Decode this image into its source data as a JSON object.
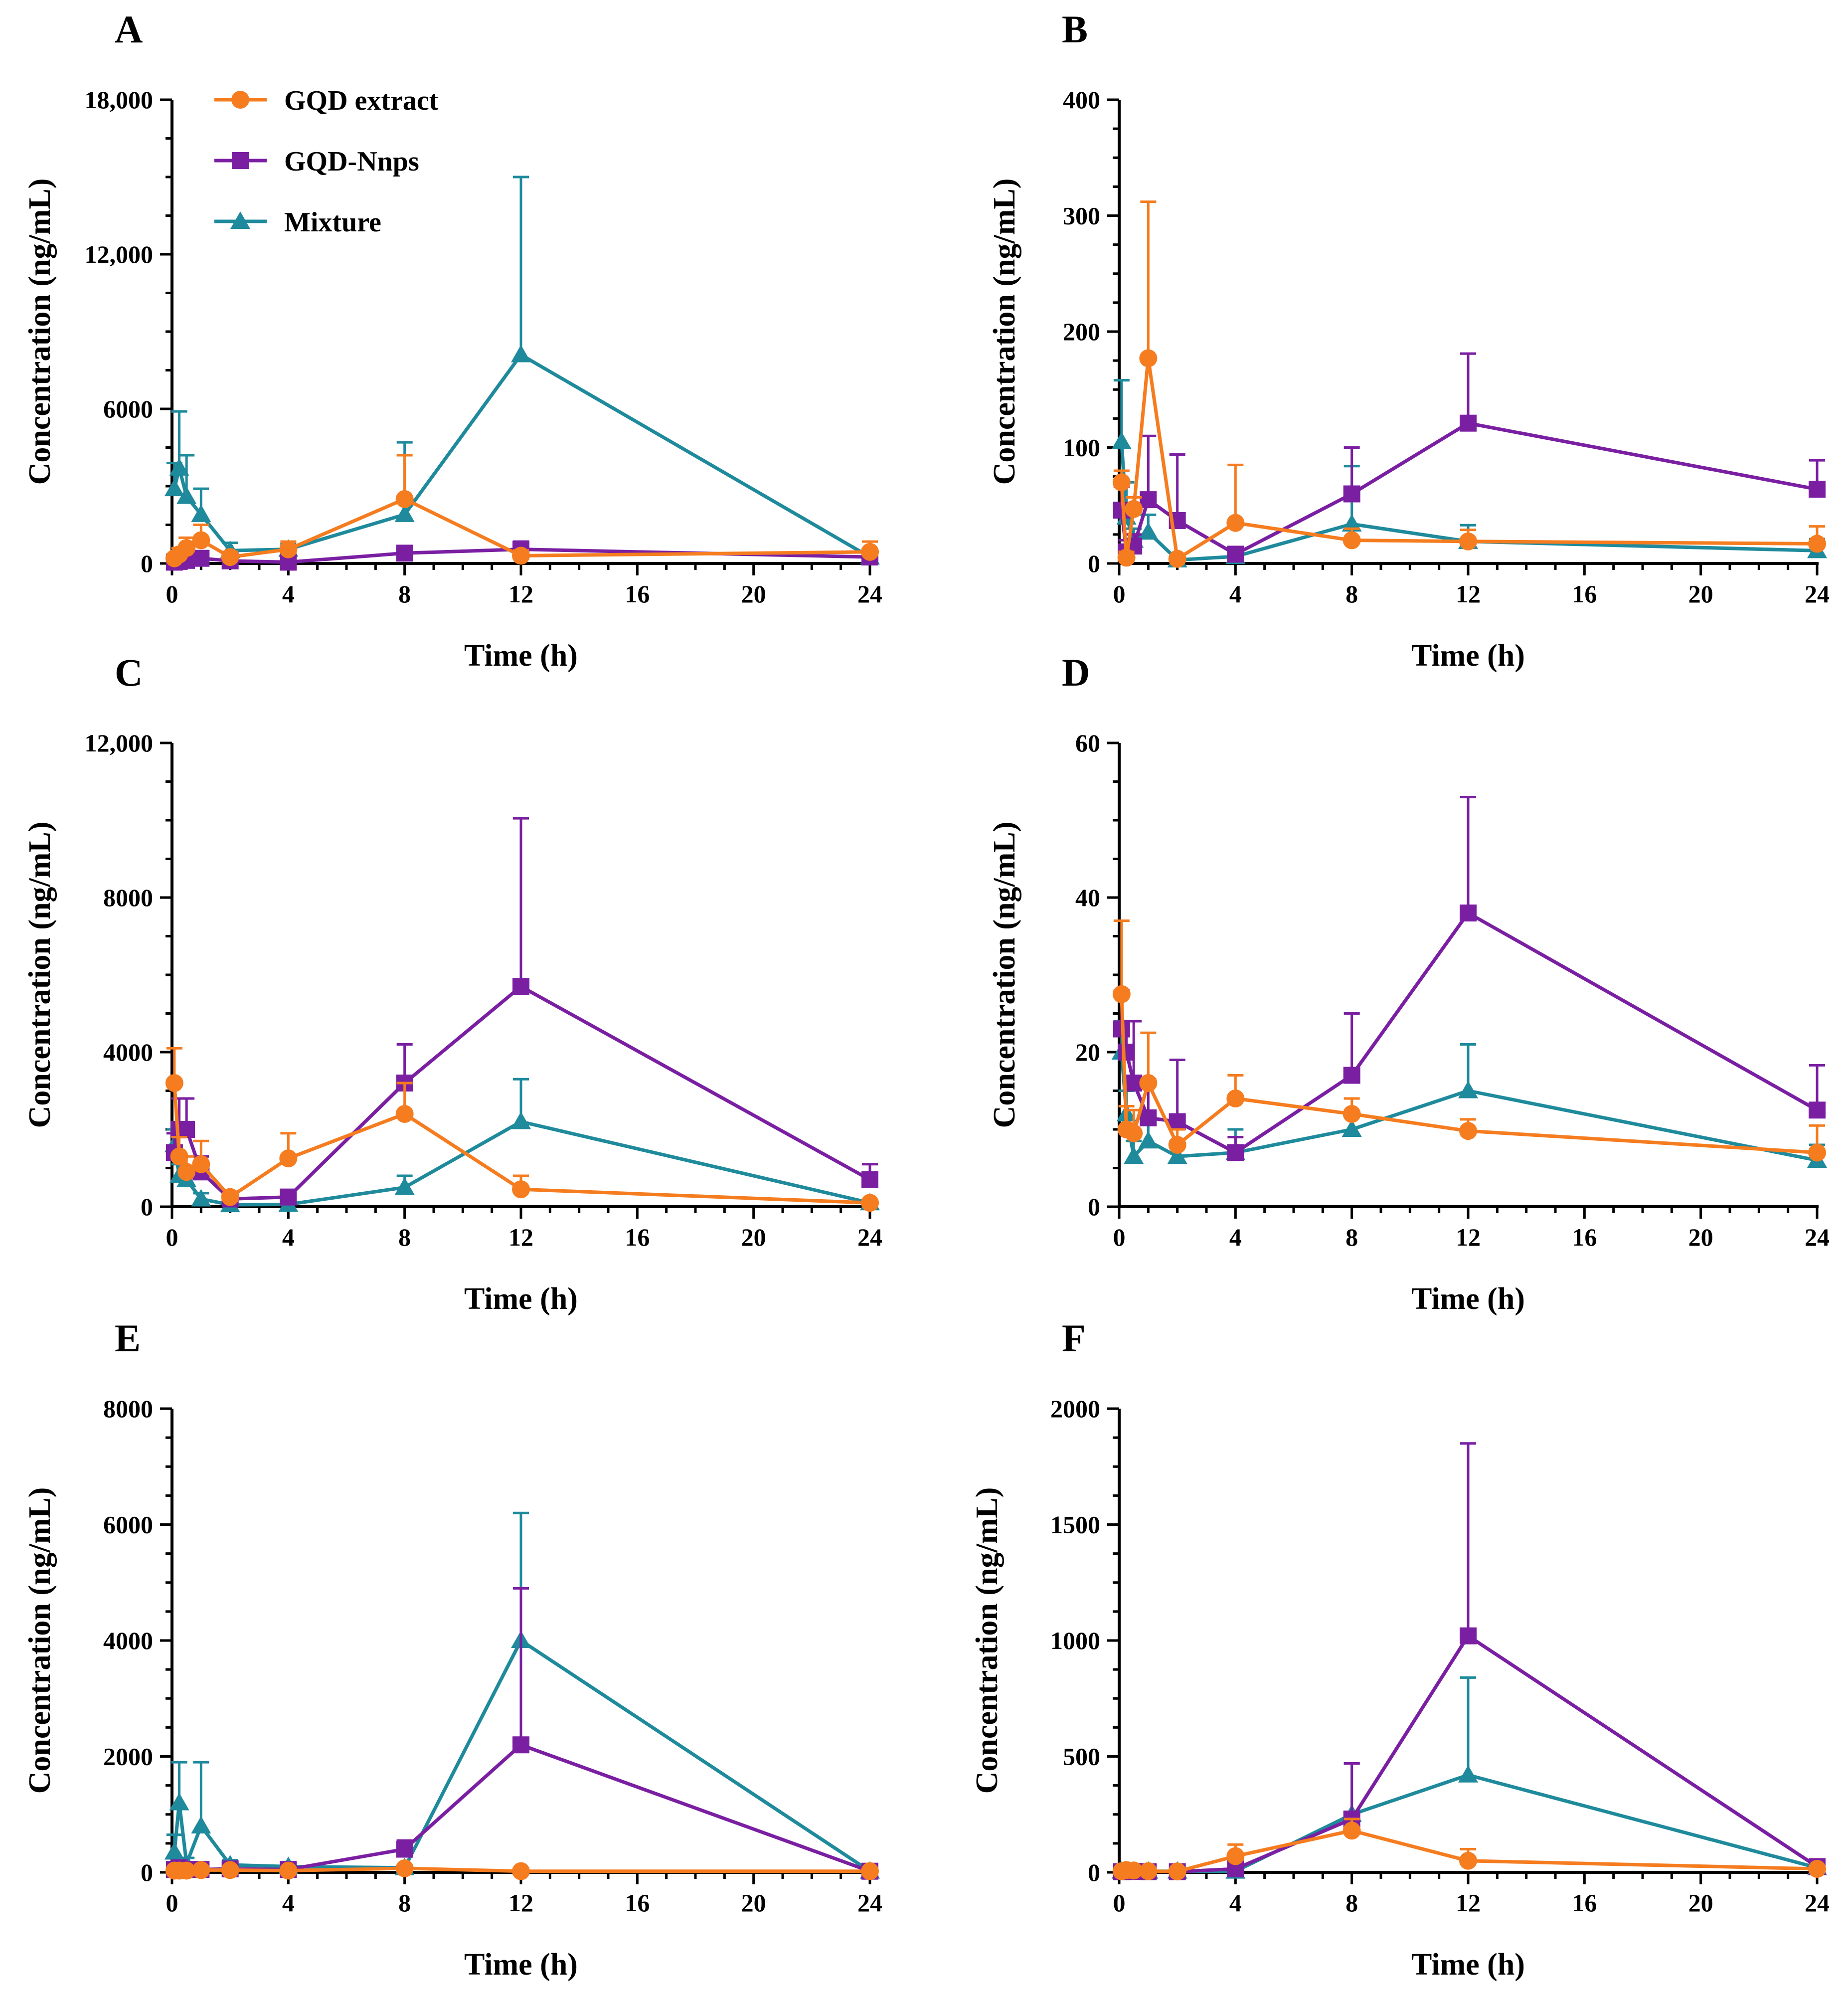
{
  "colors": {
    "gqd_extract": "#f57c1f",
    "gqd_nnps": "#7a1fa2",
    "mixture": "#1e8a9c",
    "axis": "#000000"
  },
  "legend": [
    {
      "name": "GQD extract",
      "marker": "circle"
    },
    {
      "name": "GQD-Nnps",
      "marker": "square"
    },
    {
      "name": "Mixture",
      "marker": "triangle"
    }
  ],
  "chart_data": [
    {
      "panel": "A",
      "type": "line",
      "xlabel": "Time (h)",
      "ylabel": "Concentration (ng/mL)",
      "xlim": [
        0,
        24
      ],
      "ylim": [
        0,
        18000
      ],
      "xticks": [
        0,
        4,
        8,
        12,
        16,
        20,
        24
      ],
      "yticks": [
        0,
        6000,
        12000,
        18000
      ],
      "ytick_labels": [
        "0",
        "6000",
        "12,000",
        "18,000"
      ],
      "x": [
        0.083,
        0.25,
        0.5,
        1,
        2,
        4,
        8,
        12,
        24
      ],
      "series": [
        {
          "name": "GQD extract",
          "values": [
            200,
            350,
            600,
            900,
            250,
            550,
            2500,
            300,
            450
          ],
          "errors": [
            150,
            250,
            400,
            600,
            200,
            300,
            1700,
            200,
            400
          ]
        },
        {
          "name": "GQD-Nnps",
          "values": [
            50,
            80,
            120,
            200,
            100,
            50,
            400,
            550,
            250
          ],
          "errors": [
            40,
            60,
            100,
            200,
            80,
            50,
            200,
            300,
            200
          ]
        },
        {
          "name": "Mixture",
          "values": [
            2900,
            3700,
            2600,
            1900,
            500,
            550,
            1900,
            8100,
            250
          ],
          "errors": [
            1000,
            2200,
            1600,
            1000,
            300,
            200,
            2800,
            6900,
            200
          ]
        }
      ]
    },
    {
      "panel": "B",
      "type": "line",
      "xlabel": "Time (h)",
      "ylabel": "Concentration (ng/mL)",
      "xlim": [
        0,
        24
      ],
      "ylim": [
        0,
        400
      ],
      "xticks": [
        0,
        4,
        8,
        12,
        16,
        20,
        24
      ],
      "yticks": [
        0,
        100,
        200,
        300,
        400
      ],
      "ytick_labels": [
        "0",
        "100",
        "200",
        "300",
        "400"
      ],
      "x": [
        0.083,
        0.25,
        0.5,
        1,
        2,
        4,
        8,
        12,
        24
      ],
      "series": [
        {
          "name": "GQD extract",
          "values": [
            70,
            5,
            47,
            177,
            4,
            35,
            20,
            19,
            17
          ],
          "errors": [
            10,
            5,
            10,
            135,
            3,
            50,
            10,
            10,
            15
          ]
        },
        {
          "name": "GQD-Nnps",
          "values": [
            46,
            10,
            15,
            55,
            37,
            8,
            60,
            121,
            64
          ],
          "errors": [
            20,
            10,
            10,
            55,
            57,
            5,
            40,
            60,
            25
          ]
        },
        {
          "name": "Mixture",
          "values": [
            105,
            40,
            20,
            27,
            3,
            6,
            34,
            19,
            11
          ],
          "errors": [
            53,
            30,
            10,
            15,
            3,
            5,
            50,
            14,
            10
          ]
        }
      ]
    },
    {
      "panel": "C",
      "type": "line",
      "xlabel": "Time (h)",
      "ylabel": "Concentration (ng/mL)",
      "xlim": [
        0,
        24
      ],
      "ylim": [
        0,
        12000
      ],
      "xticks": [
        0,
        4,
        8,
        12,
        16,
        20,
        24
      ],
      "yticks": [
        0,
        4000,
        8000,
        12000
      ],
      "ytick_labels": [
        "0",
        "4000",
        "8000",
        "12,000"
      ],
      "x": [
        0.083,
        0.25,
        0.5,
        1,
        2,
        4,
        8,
        12,
        24
      ],
      "series": [
        {
          "name": "GQD extract",
          "values": [
            3200,
            1300,
            900,
            1100,
            250,
            1250,
            2400,
            450,
            100
          ],
          "errors": [
            900,
            500,
            400,
            600,
            100,
            650,
            800,
            350,
            50
          ]
        },
        {
          "name": "GQD-Nnps",
          "values": [
            1400,
            2000,
            2000,
            900,
            200,
            250,
            3200,
            5700,
            700
          ],
          "errors": [
            500,
            800,
            800,
            400,
            100,
            150,
            1000,
            4350,
            400
          ]
        },
        {
          "name": "Mixture",
          "values": [
            1600,
            800,
            700,
            200,
            50,
            60,
            500,
            2200,
            100
          ],
          "errors": [
            400,
            300,
            300,
            150,
            50,
            40,
            300,
            1100,
            50
          ]
        }
      ]
    },
    {
      "panel": "D",
      "type": "line",
      "xlabel": "Time (h)",
      "ylabel": "Concentration (ng/mL)",
      "xlim": [
        0,
        24
      ],
      "ylim": [
        0,
        60
      ],
      "xticks": [
        0,
        4,
        8,
        12,
        16,
        20,
        24
      ],
      "yticks": [
        0,
        20,
        40,
        60
      ],
      "ytick_labels": [
        "0",
        "20",
        "40",
        "60"
      ],
      "x": [
        0.083,
        0.25,
        0.5,
        1,
        2,
        4,
        8,
        12,
        24
      ],
      "series": [
        {
          "name": "GQD extract",
          "values": [
            27.5,
            10,
            9.5,
            16,
            8,
            14,
            12,
            9.8,
            7
          ],
          "errors": [
            9.5,
            3,
            3,
            6.5,
            2,
            3,
            2,
            1.5,
            3.5
          ]
        },
        {
          "name": "GQD-Nnps",
          "values": [
            23,
            20,
            16,
            11.5,
            11,
            7,
            17,
            38,
            12.5
          ],
          "errors": [
            5,
            4,
            8,
            5,
            8,
            2,
            8,
            15,
            5.8
          ]
        },
        {
          "name": "Mixture",
          "values": [
            20,
            12,
            6.5,
            8.5,
            6.5,
            7,
            10,
            15,
            6
          ],
          "errors": [
            4,
            3,
            2,
            3,
            2,
            3,
            2,
            6,
            2
          ]
        }
      ]
    },
    {
      "panel": "E",
      "type": "line",
      "xlabel": "Time (h)",
      "ylabel": "Concentration (ng/mL)",
      "xlim": [
        0,
        24
      ],
      "ylim": [
        0,
        8000
      ],
      "xticks": [
        0,
        4,
        8,
        12,
        16,
        20,
        24
      ],
      "yticks": [
        0,
        2000,
        4000,
        6000,
        8000
      ],
      "ytick_labels": [
        "0",
        "2000",
        "4000",
        "6000",
        "8000"
      ],
      "x": [
        0.083,
        0.25,
        0.5,
        1,
        2,
        4,
        8,
        12,
        24
      ],
      "series": [
        {
          "name": "GQD extract",
          "values": [
            30,
            30,
            30,
            40,
            40,
            30,
            70,
            20,
            20
          ],
          "errors": [
            20,
            20,
            20,
            20,
            20,
            20,
            40,
            10,
            10
          ]
        },
        {
          "name": "GQD-Nnps",
          "values": [
            50,
            80,
            50,
            50,
            60,
            50,
            400,
            2200,
            20
          ],
          "errors": [
            40,
            40,
            40,
            40,
            40,
            40,
            150,
            2700,
            10
          ]
        },
        {
          "name": "Mixture",
          "values": [
            350,
            1200,
            150,
            800,
            130,
            100,
            80,
            4000,
            20
          ],
          "errors": [
            300,
            700,
            100,
            1100,
            80,
            60,
            40,
            2200,
            10
          ]
        }
      ]
    },
    {
      "panel": "F",
      "type": "line",
      "xlabel": "Time (h)",
      "ylabel": "Concentration (ng/mL)",
      "xlim": [
        0,
        24
      ],
      "ylim": [
        0,
        2000
      ],
      "xticks": [
        0,
        4,
        8,
        12,
        16,
        20,
        24
      ],
      "yticks": [
        0,
        500,
        1000,
        1500,
        2000
      ],
      "ytick_labels": [
        "0",
        "500",
        "1000",
        "1500",
        "2000"
      ],
      "x": [
        0.083,
        0.25,
        0.5,
        1,
        2,
        4,
        8,
        12,
        24
      ],
      "series": [
        {
          "name": "GQD extract",
          "values": [
            5,
            10,
            8,
            5,
            4,
            70,
            180,
            50,
            15
          ],
          "errors": [
            5,
            5,
            5,
            5,
            3,
            50,
            50,
            50,
            10
          ]
        },
        {
          "name": "GQD-Nnps",
          "values": [
            3,
            4,
            4,
            3,
            3,
            15,
            230,
            1020,
            25
          ],
          "errors": [
            3,
            3,
            3,
            3,
            3,
            10,
            240,
            830,
            10
          ]
        },
        {
          "name": "Mixture",
          "values": [
            5,
            5,
            5,
            5,
            5,
            5,
            250,
            420,
            20
          ],
          "errors": [
            3,
            3,
            3,
            3,
            3,
            3,
            220,
            420,
            10
          ]
        }
      ]
    }
  ]
}
